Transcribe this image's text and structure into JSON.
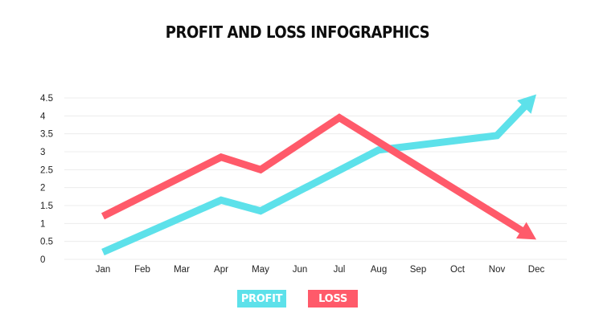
{
  "chart_data": {
    "type": "line",
    "title": "PROFIT AND LOSS INFOGRAPHICS",
    "categories": [
      "Jan",
      "Feb",
      "Mar",
      "Apr",
      "May",
      "Jun",
      "Jul",
      "Aug",
      "Sep",
      "Oct",
      "Nov",
      "Dec"
    ],
    "ylim": [
      0,
      4.5
    ],
    "yticks": [
      "0",
      "0.5",
      "1",
      "1.5",
      "2",
      "2.5",
      "3",
      "3.5",
      "4",
      "4.5"
    ],
    "grid": true,
    "legend_position": "bottom-center",
    "series": [
      {
        "name": "PROFIT",
        "color": "#5de1ea",
        "points": [
          {
            "x": "Jan",
            "y": 0.2
          },
          {
            "x": "Apr",
            "y": 1.65
          },
          {
            "x": "May",
            "y": 1.35
          },
          {
            "x": "Aug",
            "y": 3.05
          },
          {
            "x": "Nov",
            "y": 3.45
          },
          {
            "x": "Dec",
            "y": 4.6
          }
        ]
      },
      {
        "name": "LOSS",
        "color": "#ff5a6a",
        "points": [
          {
            "x": "Jan",
            "y": 1.2
          },
          {
            "x": "Apr",
            "y": 2.85
          },
          {
            "x": "May",
            "y": 2.5
          },
          {
            "x": "Jul",
            "y": 3.95
          },
          {
            "x": "Dec",
            "y": 0.55
          }
        ]
      }
    ]
  }
}
